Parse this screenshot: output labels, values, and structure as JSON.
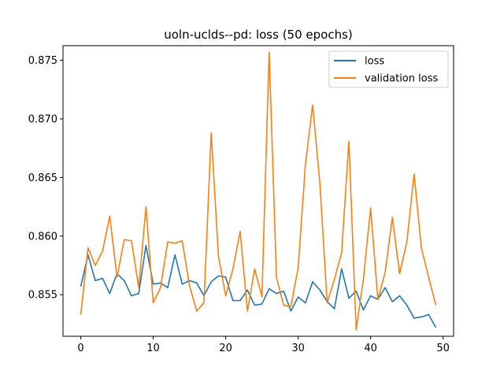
{
  "chart_data": {
    "type": "line",
    "title": "uoln-uclds--pd: loss (50 epochs)",
    "xlabel": "",
    "ylabel": "",
    "xlim": [
      -2.45,
      51.45
    ],
    "ylim": [
      0.85145,
      0.87625
    ],
    "xticks": [
      0,
      10,
      20,
      30,
      40,
      50
    ],
    "yticks": [
      0.855,
      0.86,
      0.865,
      0.87,
      0.875
    ],
    "ytick_labels": [
      "0.855",
      "0.860",
      "0.865",
      "0.870",
      "0.875"
    ],
    "grid": false,
    "legend_position": "top-right",
    "x": [
      0,
      1,
      2,
      3,
      4,
      5,
      6,
      7,
      8,
      9,
      10,
      11,
      12,
      13,
      14,
      15,
      16,
      17,
      18,
      19,
      20,
      21,
      22,
      23,
      24,
      25,
      26,
      27,
      28,
      29,
      30,
      31,
      32,
      33,
      34,
      35,
      36,
      37,
      38,
      39,
      40,
      41,
      42,
      43,
      44,
      45,
      46,
      47,
      48,
      49
    ],
    "series": [
      {
        "name": "loss",
        "color": "#1f77b4",
        "values": [
          0.8557,
          0.8584,
          0.8562,
          0.8564,
          0.8551,
          0.8568,
          0.8562,
          0.8549,
          0.8551,
          0.8592,
          0.8559,
          0.856,
          0.8556,
          0.8584,
          0.8559,
          0.8562,
          0.856,
          0.8549,
          0.8561,
          0.8566,
          0.8565,
          0.8545,
          0.8545,
          0.8554,
          0.8541,
          0.8542,
          0.8555,
          0.8551,
          0.8553,
          0.8536,
          0.8548,
          0.8543,
          0.8561,
          0.8554,
          0.8544,
          0.8538,
          0.8572,
          0.8547,
          0.8553,
          0.8537,
          0.8549,
          0.8546,
          0.8556,
          0.8544,
          0.8549,
          0.8541,
          0.853,
          0.8531,
          0.8533,
          0.8522
        ]
      },
      {
        "name": "validation loss",
        "color": "#ff7f0e",
        "values": [
          0.8533,
          0.859,
          0.8575,
          0.8587,
          0.8617,
          0.8565,
          0.8597,
          0.8596,
          0.8556,
          0.8625,
          0.8543,
          0.8556,
          0.8595,
          0.8594,
          0.8596,
          0.8558,
          0.8536,
          0.8543,
          0.8688,
          0.8583,
          0.8549,
          0.8572,
          0.8604,
          0.8536,
          0.8572,
          0.8548,
          0.8757,
          0.8565,
          0.8541,
          0.854,
          0.8573,
          0.8661,
          0.8712,
          0.8645,
          0.8543,
          0.8563,
          0.8586,
          0.8681,
          0.852,
          0.8563,
          0.8624,
          0.8546,
          0.8569,
          0.8616,
          0.8568,
          0.8595,
          0.8653,
          0.859,
          0.8565,
          0.8541
        ]
      }
    ]
  }
}
